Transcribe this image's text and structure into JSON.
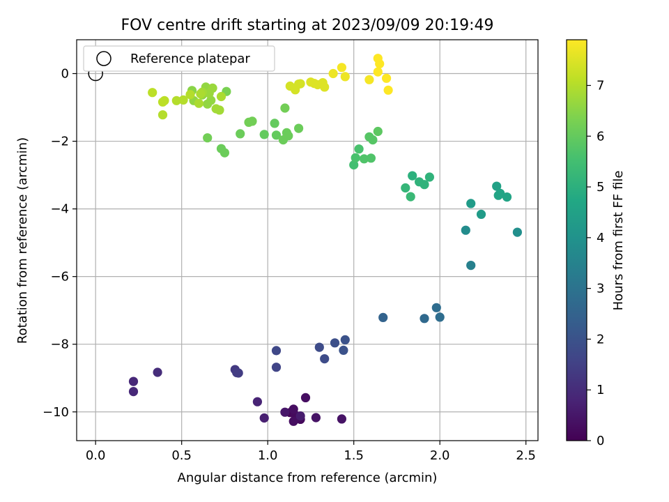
{
  "chart_data": {
    "type": "scatter",
    "title": "FOV centre drift starting at 2023/09/09 20:19:49",
    "xlabel": "Angular distance from reference (arcmin)",
    "ylabel": "Rotation from reference (arcmin)",
    "xlim": [
      -0.11,
      2.57
    ],
    "ylim": [
      -10.85,
      1.0
    ],
    "x_ticks": [
      0.0,
      0.5,
      1.0,
      1.5,
      2.0,
      2.5
    ],
    "x_tick_labels": [
      "0.0",
      "0.5",
      "1.0",
      "1.5",
      "2.0",
      "2.5"
    ],
    "y_ticks": [
      0,
      -2,
      -4,
      -6,
      -8,
      -10
    ],
    "y_tick_labels": [
      "0",
      "−2",
      "−4",
      "−6",
      "−8",
      "−10"
    ],
    "grid": true,
    "legend": {
      "placement": "top-left",
      "entries": [
        {
          "label": "Reference platepar",
          "marker": "open-circle"
        }
      ]
    },
    "reference_point": {
      "x": 0.0,
      "y": 0.0
    },
    "colorbar": {
      "label": "Hours from first FF file",
      "range": [
        0,
        7.9
      ],
      "ticks": [
        0,
        1,
        2,
        3,
        4,
        5,
        6,
        7
      ],
      "tick_labels": [
        "0",
        "1",
        "2",
        "3",
        "4",
        "5",
        "6",
        "7"
      ],
      "colormap": "viridis",
      "stops": [
        "#440154",
        "#482475",
        "#414487",
        "#355f8d",
        "#2a788e",
        "#21918c",
        "#22a884",
        "#44bf70",
        "#7ad151",
        "#bddf26",
        "#fde725"
      ]
    },
    "points": [
      {
        "x": 1.13,
        "y": -10.02,
        "h": 0.1
      },
      {
        "x": 1.16,
        "y": -10.1,
        "h": 0.2
      },
      {
        "x": 1.19,
        "y": -10.22,
        "h": 0.2
      },
      {
        "x": 1.15,
        "y": -10.28,
        "h": 0.3
      },
      {
        "x": 1.15,
        "y": -9.92,
        "h": 0.3
      },
      {
        "x": 1.22,
        "y": -9.58,
        "h": 0.3
      },
      {
        "x": 1.28,
        "y": -10.17,
        "h": 0.4
      },
      {
        "x": 1.43,
        "y": -10.21,
        "h": 0.4
      },
      {
        "x": 1.1,
        "y": -10.01,
        "h": 0.5
      },
      {
        "x": 1.19,
        "y": -10.12,
        "h": 0.6
      },
      {
        "x": 0.98,
        "y": -10.18,
        "h": 0.7
      },
      {
        "x": 0.94,
        "y": -9.7,
        "h": 0.8
      },
      {
        "x": 0.22,
        "y": -9.1,
        "h": 0.9
      },
      {
        "x": 0.22,
        "y": -9.4,
        "h": 0.9
      },
      {
        "x": 0.36,
        "y": -8.83,
        "h": 1.0
      },
      {
        "x": 0.81,
        "y": -8.75,
        "h": 1.3
      },
      {
        "x": 0.83,
        "y": -8.85,
        "h": 1.4
      },
      {
        "x": 0.82,
        "y": -8.84,
        "h": 1.4
      },
      {
        "x": 1.05,
        "y": -8.68,
        "h": 1.6
      },
      {
        "x": 1.05,
        "y": -8.19,
        "h": 1.7
      },
      {
        "x": 1.3,
        "y": -8.09,
        "h": 1.8
      },
      {
        "x": 1.33,
        "y": -8.43,
        "h": 1.8
      },
      {
        "x": 1.39,
        "y": -7.96,
        "h": 1.9
      },
      {
        "x": 1.45,
        "y": -7.87,
        "h": 2.0
      },
      {
        "x": 1.44,
        "y": -8.18,
        "h": 2.0
      },
      {
        "x": 1.67,
        "y": -7.21,
        "h": 2.5
      },
      {
        "x": 1.91,
        "y": -7.24,
        "h": 2.7
      },
      {
        "x": 1.98,
        "y": -6.92,
        "h": 2.8
      },
      {
        "x": 2.0,
        "y": -7.2,
        "h": 2.8
      },
      {
        "x": 2.18,
        "y": -5.67,
        "h": 3.4
      },
      {
        "x": 2.15,
        "y": -4.63,
        "h": 3.8
      },
      {
        "x": 2.45,
        "y": -4.69,
        "h": 3.9
      },
      {
        "x": 2.18,
        "y": -3.84,
        "h": 4.3
      },
      {
        "x": 2.24,
        "y": -4.16,
        "h": 4.3
      },
      {
        "x": 2.33,
        "y": -3.33,
        "h": 4.5
      },
      {
        "x": 2.34,
        "y": -3.6,
        "h": 4.6
      },
      {
        "x": 2.35,
        "y": -3.54,
        "h": 4.6
      },
      {
        "x": 2.39,
        "y": -3.65,
        "h": 4.6
      },
      {
        "x": 1.84,
        "y": -3.02,
        "h": 5.0
      },
      {
        "x": 1.88,
        "y": -3.2,
        "h": 5.1
      },
      {
        "x": 1.91,
        "y": -3.28,
        "h": 5.1
      },
      {
        "x": 1.8,
        "y": -3.38,
        "h": 5.2
      },
      {
        "x": 1.83,
        "y": -3.64,
        "h": 5.3
      },
      {
        "x": 1.94,
        "y": -3.06,
        "h": 5.1
      },
      {
        "x": 1.5,
        "y": -2.7,
        "h": 5.5
      },
      {
        "x": 1.51,
        "y": -2.49,
        "h": 5.6
      },
      {
        "x": 1.53,
        "y": -2.23,
        "h": 5.6
      },
      {
        "x": 1.56,
        "y": -2.52,
        "h": 5.7
      },
      {
        "x": 1.6,
        "y": -2.5,
        "h": 5.7
      },
      {
        "x": 1.59,
        "y": -1.87,
        "h": 5.8
      },
      {
        "x": 1.61,
        "y": -1.96,
        "h": 5.8
      },
      {
        "x": 1.64,
        "y": -1.71,
        "h": 5.9
      },
      {
        "x": 1.04,
        "y": -1.47,
        "h": 6.0
      },
      {
        "x": 1.05,
        "y": -1.82,
        "h": 6.0
      },
      {
        "x": 1.09,
        "y": -1.96,
        "h": 6.1
      },
      {
        "x": 1.11,
        "y": -1.75,
        "h": 6.1
      },
      {
        "x": 1.12,
        "y": -1.84,
        "h": 6.1
      },
      {
        "x": 1.1,
        "y": -1.02,
        "h": 6.2
      },
      {
        "x": 1.18,
        "y": -1.62,
        "h": 6.1
      },
      {
        "x": 0.98,
        "y": -1.8,
        "h": 6.0
      },
      {
        "x": 0.84,
        "y": -1.78,
        "h": 6.1
      },
      {
        "x": 0.89,
        "y": -1.44,
        "h": 6.2
      },
      {
        "x": 0.91,
        "y": -1.41,
        "h": 6.2
      },
      {
        "x": 0.73,
        "y": -2.22,
        "h": 6.1
      },
      {
        "x": 0.75,
        "y": -2.34,
        "h": 6.1
      },
      {
        "x": 0.65,
        "y": -1.9,
        "h": 6.2
      },
      {
        "x": 0.76,
        "y": -0.53,
        "h": 6.3
      },
      {
        "x": 0.56,
        "y": -0.5,
        "h": 6.5
      },
      {
        "x": 0.57,
        "y": -0.8,
        "h": 6.6
      },
      {
        "x": 0.62,
        "y": -0.63,
        "h": 6.6
      },
      {
        "x": 0.65,
        "y": -0.9,
        "h": 6.6
      },
      {
        "x": 0.67,
        "y": -0.79,
        "h": 6.6
      },
      {
        "x": 0.64,
        "y": -0.4,
        "h": 6.6
      },
      {
        "x": 0.66,
        "y": -0.58,
        "h": 6.7
      },
      {
        "x": 0.68,
        "y": -0.43,
        "h": 6.7
      },
      {
        "x": 0.62,
        "y": -0.55,
        "h": 6.8
      },
      {
        "x": 0.7,
        "y": -1.04,
        "h": 6.8
      },
      {
        "x": 0.72,
        "y": -1.08,
        "h": 6.8
      },
      {
        "x": 0.73,
        "y": -0.68,
        "h": 6.9
      },
      {
        "x": 0.61,
        "y": -0.6,
        "h": 6.9
      },
      {
        "x": 0.55,
        "y": -0.62,
        "h": 7.0
      },
      {
        "x": 0.51,
        "y": -0.78,
        "h": 7.0
      },
      {
        "x": 0.47,
        "y": -0.8,
        "h": 7.0
      },
      {
        "x": 0.4,
        "y": -0.8,
        "h": 7.1
      },
      {
        "x": 0.39,
        "y": -1.22,
        "h": 7.0
      },
      {
        "x": 0.39,
        "y": -0.84,
        "h": 7.1
      },
      {
        "x": 0.33,
        "y": -0.56,
        "h": 7.1
      },
      {
        "x": 0.6,
        "y": -0.88,
        "h": 6.9
      },
      {
        "x": 1.13,
        "y": -0.37,
        "h": 7.4
      },
      {
        "x": 1.16,
        "y": -0.48,
        "h": 7.4
      },
      {
        "x": 1.18,
        "y": -0.31,
        "h": 7.4
      },
      {
        "x": 1.19,
        "y": -0.3,
        "h": 7.4
      },
      {
        "x": 1.25,
        "y": -0.25,
        "h": 7.5
      },
      {
        "x": 1.27,
        "y": -0.29,
        "h": 7.5
      },
      {
        "x": 1.29,
        "y": -0.33,
        "h": 7.5
      },
      {
        "x": 1.32,
        "y": -0.27,
        "h": 7.5
      },
      {
        "x": 1.33,
        "y": -0.4,
        "h": 7.5
      },
      {
        "x": 1.38,
        "y": 0.0,
        "h": 7.7
      },
      {
        "x": 1.43,
        "y": 0.18,
        "h": 7.8
      },
      {
        "x": 1.45,
        "y": -0.09,
        "h": 7.7
      },
      {
        "x": 1.59,
        "y": -0.18,
        "h": 7.8
      },
      {
        "x": 1.64,
        "y": 0.45,
        "h": 7.9
      },
      {
        "x": 1.64,
        "y": 0.05,
        "h": 7.9
      },
      {
        "x": 1.65,
        "y": 0.29,
        "h": 7.9
      },
      {
        "x": 1.69,
        "y": -0.14,
        "h": 7.9
      },
      {
        "x": 1.7,
        "y": -0.49,
        "h": 7.9
      }
    ]
  }
}
